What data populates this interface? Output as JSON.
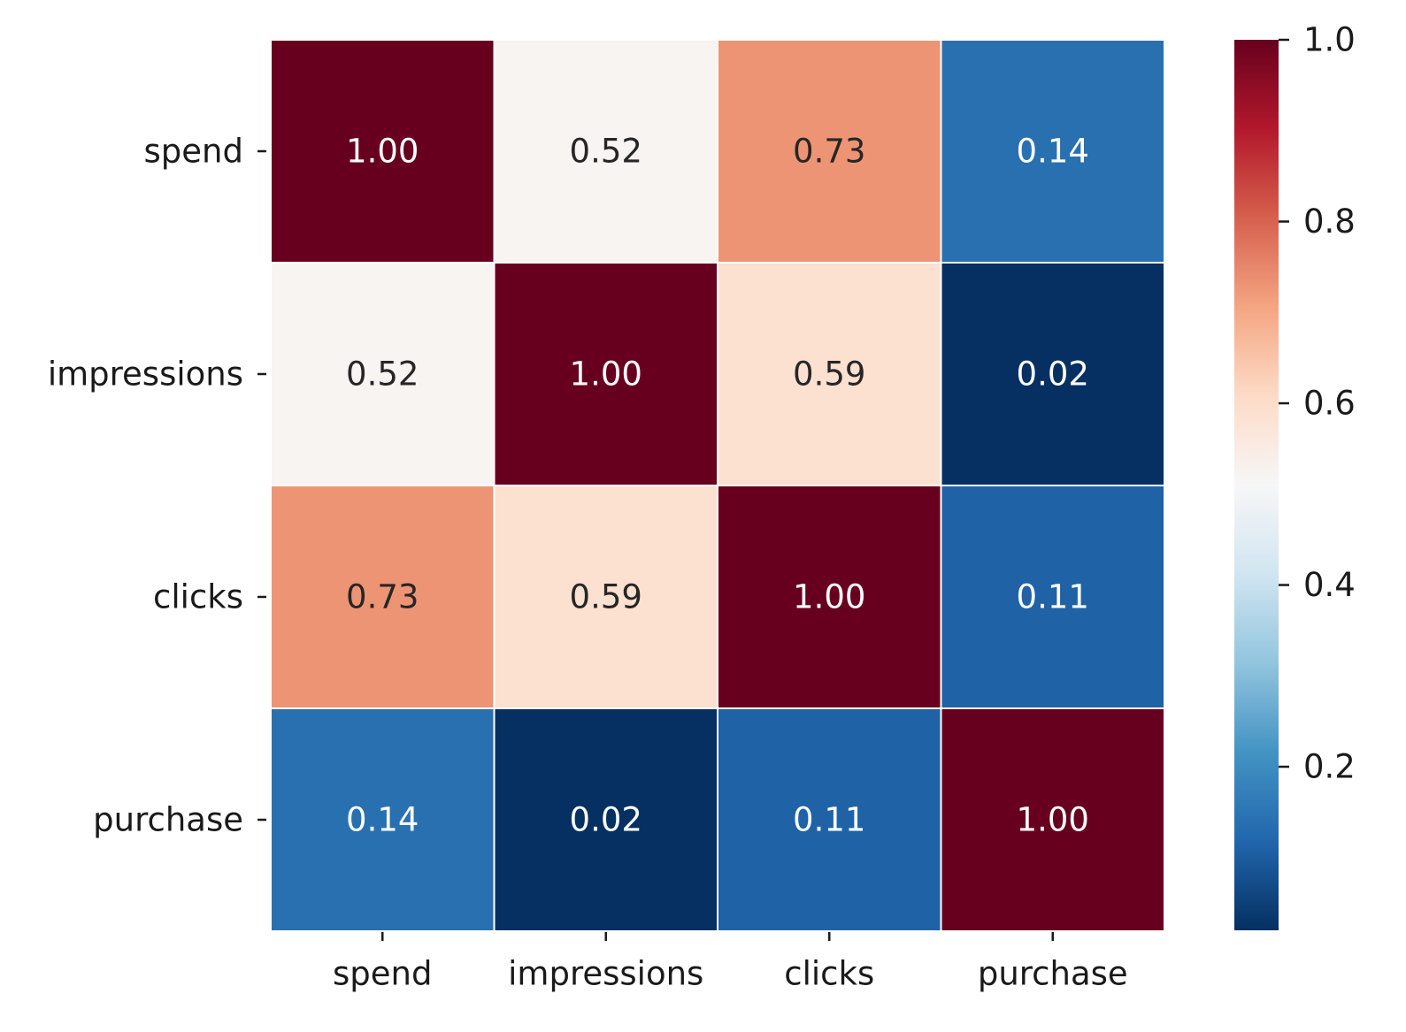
{
  "chart_data": {
    "type": "heatmap",
    "title": "",
    "xlabel": "",
    "ylabel": "",
    "rows": [
      "spend",
      "impressions",
      "clicks",
      "purchase"
    ],
    "columns": [
      "spend",
      "impressions",
      "clicks",
      "purchase"
    ],
    "values": [
      [
        1.0,
        0.52,
        0.73,
        0.14
      ],
      [
        0.52,
        1.0,
        0.59,
        0.02
      ],
      [
        0.73,
        0.59,
        1.0,
        0.11
      ],
      [
        0.14,
        0.02,
        0.11,
        1.0
      ]
    ],
    "annotation_format": "0.00",
    "colormap": "RdBu_r",
    "color_range": [
      0.02,
      1.0
    ],
    "colorbar": {
      "ticks": [
        0.2,
        0.4,
        0.6,
        0.8,
        1.0
      ],
      "tick_labels": [
        "0.2",
        "0.4",
        "0.6",
        "0.8",
        "1.0"
      ],
      "placement": "right"
    },
    "grid_lines": true,
    "grid_line_color": "#ffffff",
    "legend": "none"
  }
}
